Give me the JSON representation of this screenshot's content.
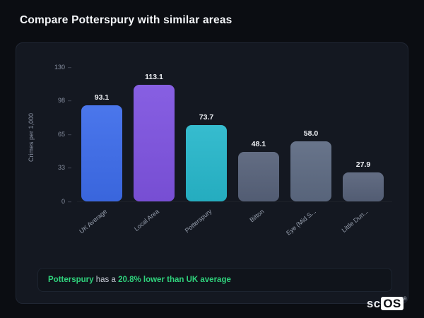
{
  "page": {
    "title": "Compare Potterspury with similar areas"
  },
  "chart_data": {
    "type": "bar",
    "categories": [
      "UK Average",
      "Local Area",
      "Potterspury",
      "Bitton",
      "Eye (Mid S...",
      "Little Dun..."
    ],
    "values": [
      93.1,
      113.1,
      73.7,
      48.1,
      58.0,
      27.9
    ],
    "bar_colors": [
      "#3d6cea",
      "#7e53e0",
      "#27b7cb",
      "#57627a",
      "#5d6a82",
      "#57627a"
    ],
    "title": "Compare Potterspury with similar areas",
    "xlabel": "",
    "ylabel": "Crimes per 1,000",
    "ylim": [
      0,
      130
    ],
    "yticks": [
      0,
      33,
      65,
      98,
      130
    ],
    "grid": false,
    "legend": false
  },
  "note": {
    "subject": "Potterspury",
    "mid": " has a ",
    "highlight": "20.8% lower than UK average",
    "accent_color": "#2fd27c"
  },
  "logo": {
    "prefix": "sc",
    "suffix": "OS",
    "reg": "®"
  }
}
